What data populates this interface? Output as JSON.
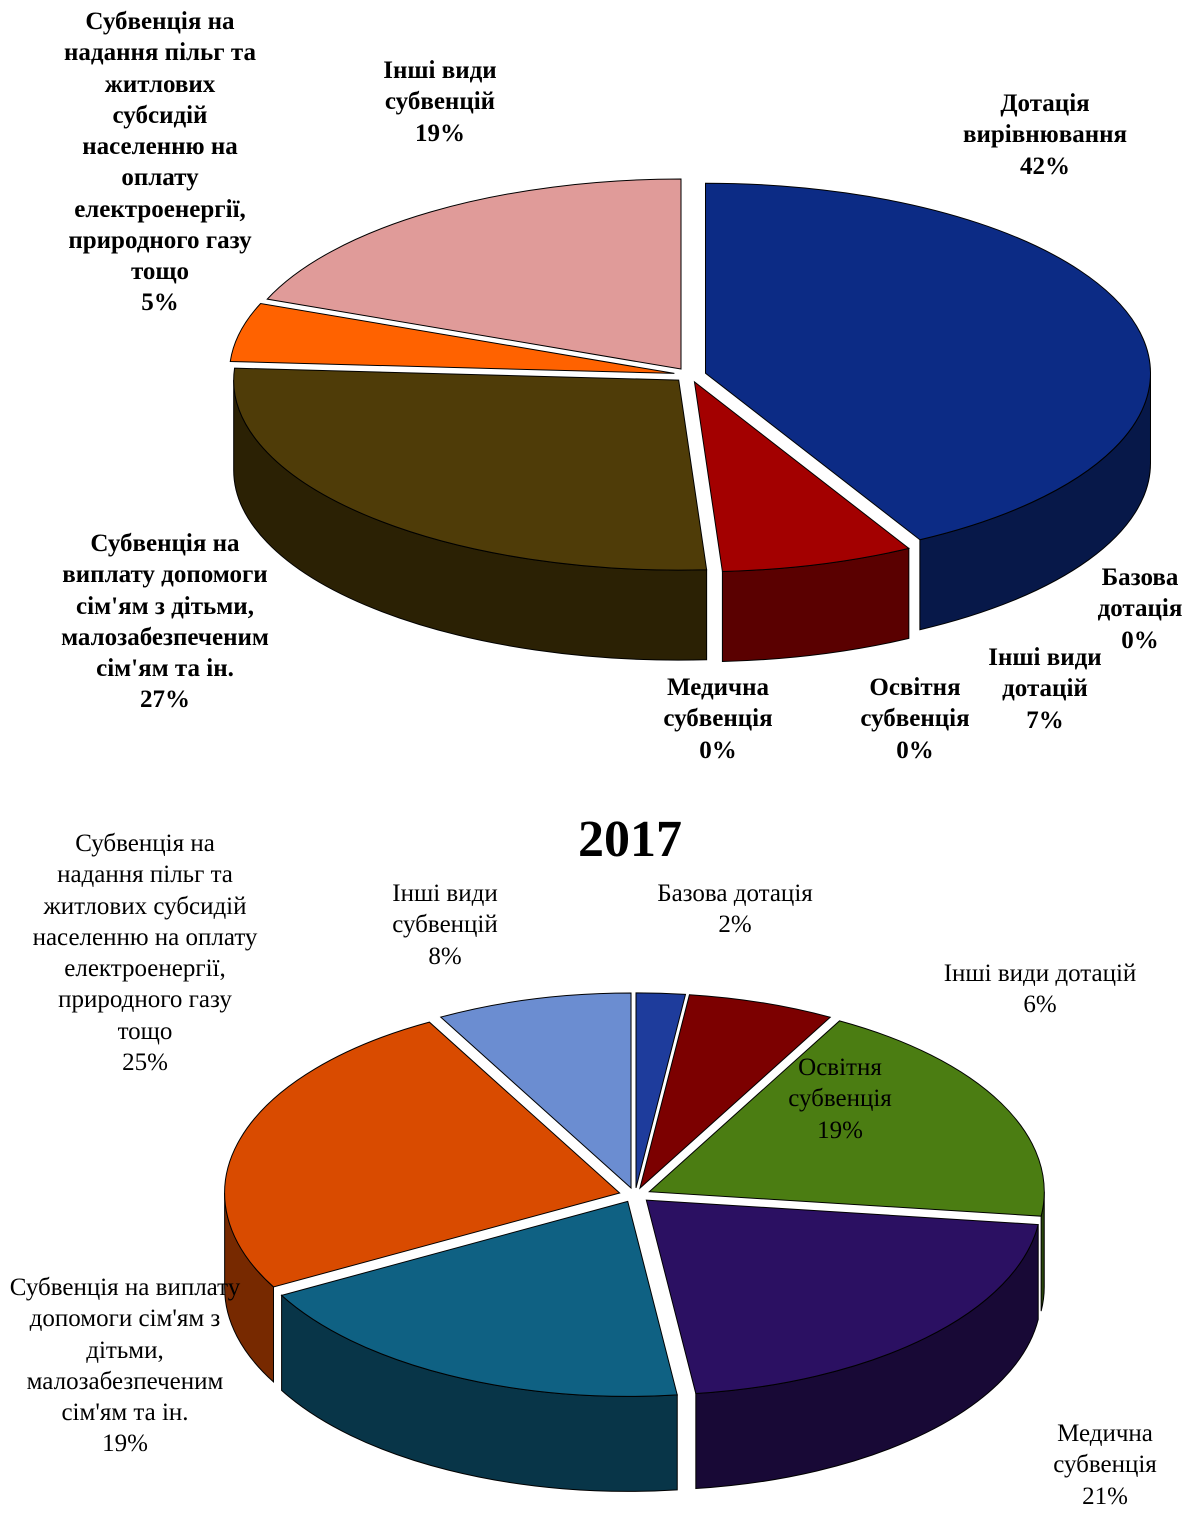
{
  "chart_data": [
    {
      "type": "pie",
      "categories": [
        "Дотація вирівнювання",
        "Базова дотація",
        "Інші види дотацій",
        "Освітня субвенція",
        "Медична субвенція",
        "Субвенція на виплату допомоги сім'ям з дітьми, малозабезпеченим сім'ям та ін.",
        "Субвенція на надання пільг та житлових субсидій населенню на оплату електроенергії, природного газу тощо",
        "Інші види субвенцій"
      ],
      "values": [
        42,
        0,
        7,
        0,
        0,
        27,
        5,
        19
      ],
      "value_labels": [
        "42%",
        "0%",
        "7%",
        "0%",
        "0%",
        "27%",
        "5%",
        "19%"
      ],
      "colors": [
        "#0c2b85",
        "#3a4fa8",
        "#a30000",
        "#5a8a20",
        "#3a1a70",
        "#4f3c08",
        "#ff6200",
        "#e09b99"
      ]
    },
    {
      "type": "pie",
      "title": "2017",
      "categories": [
        "Базова дотація",
        "Інші види дотацій",
        "Освітня субвенція",
        "Медична субвенція",
        "Субвенція на виплату допомоги сім'ям з дітьми, малозабезпеченим сім'ям та ін.",
        "Субвенція на надання пільг та житлових субсидій населенню на оплату електроенергії, природного газу тощо",
        "Інші види субвенцій"
      ],
      "values": [
        2,
        6,
        19,
        21,
        19,
        25,
        8
      ],
      "value_labels": [
        "2%",
        "6%",
        "19%",
        "21%",
        "19%",
        "25%",
        "8%"
      ],
      "colors": [
        "#1e3c9c",
        "#7c0000",
        "#4b7d12",
        "#2b1062",
        "#0f6183",
        "#d94b00",
        "#6b8dd1"
      ]
    }
  ]
}
